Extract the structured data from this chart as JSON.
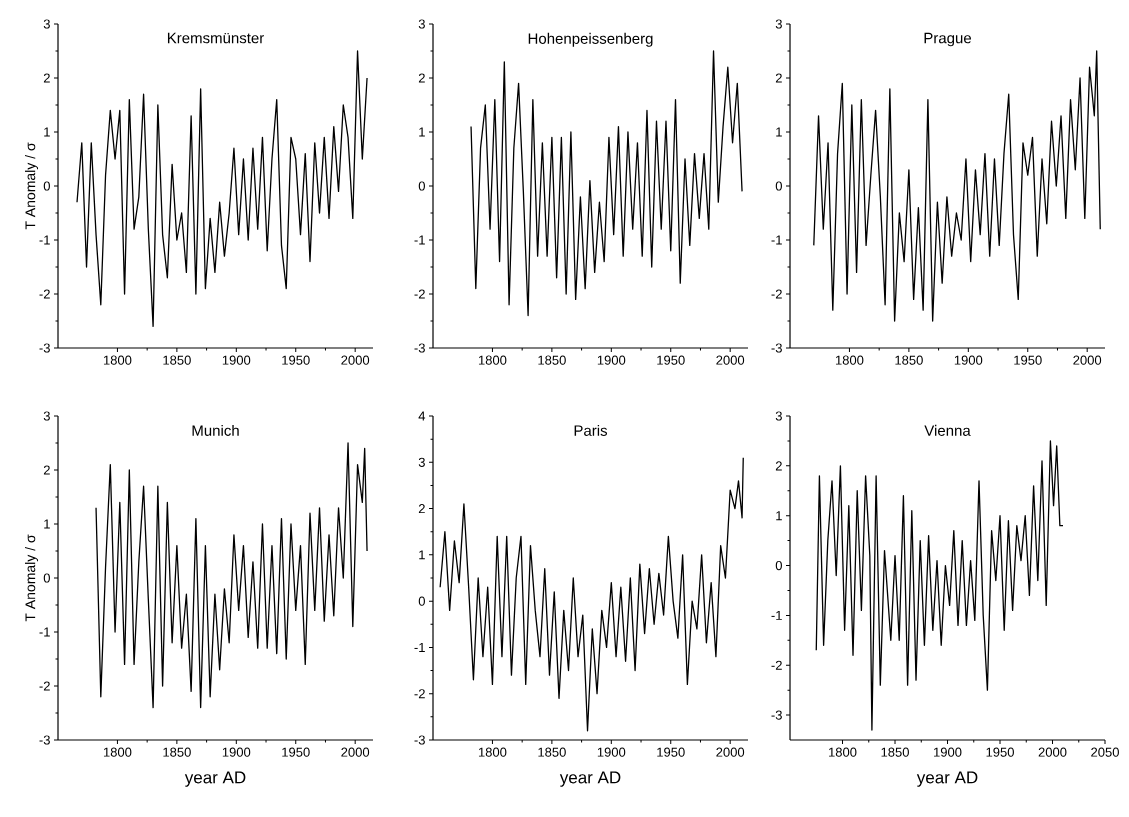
{
  "chart_data": [
    {
      "type": "line",
      "title": "Kremsmünster",
      "ylabel": "T Anomaly / σ",
      "xlim": [
        1750,
        2015
      ],
      "ylim": [
        -3,
        3
      ],
      "xticks": [
        1800,
        1850,
        1900,
        1950,
        2000
      ],
      "yticks": [
        -3,
        -2,
        -1,
        0,
        1,
        2,
        3
      ],
      "x": [
        1766,
        1770,
        1774,
        1778,
        1782,
        1786,
        1790,
        1794,
        1798,
        1802,
        1806,
        1810,
        1814,
        1818,
        1822,
        1826,
        1830,
        1834,
        1838,
        1842,
        1846,
        1850,
        1854,
        1858,
        1862,
        1866,
        1870,
        1874,
        1878,
        1882,
        1886,
        1890,
        1894,
        1898,
        1902,
        1906,
        1910,
        1914,
        1918,
        1922,
        1926,
        1930,
        1934,
        1938,
        1942,
        1946,
        1950,
        1954,
        1958,
        1962,
        1966,
        1970,
        1974,
        1978,
        1982,
        1986,
        1990,
        1994,
        1998,
        2002,
        2006,
        2010
      ],
      "series": [
        {
          "color": "#000000",
          "values": [
            -0.3,
            0.8,
            -1.5,
            0.8,
            -0.9,
            -2.2,
            0.2,
            1.4,
            0.5,
            1.4,
            -2.0,
            1.6,
            -0.8,
            -0.2,
            1.7,
            -0.8,
            -2.6,
            1.5,
            -0.9,
            -1.7,
            0.4,
            -1.0,
            -0.5,
            -1.6,
            1.3,
            -2.0,
            1.8,
            -1.9,
            -0.6,
            -1.6,
            -0.3,
            -1.3,
            -0.5,
            0.7,
            -0.9,
            0.5,
            -1.0,
            0.7,
            -0.8,
            0.9,
            -1.2,
            0.5,
            1.6,
            -1.1,
            -1.9,
            0.9,
            0.5,
            -0.9,
            0.6,
            -1.4,
            0.8,
            -0.5,
            0.9,
            -0.6,
            1.1,
            -0.1,
            1.5,
            0.9,
            -0.6,
            2.5,
            0.5,
            2.0
          ]
        }
      ]
    },
    {
      "type": "line",
      "title": "Hohenpeissenberg",
      "xlim": [
        1750,
        2015
      ],
      "ylim": [
        -3,
        3
      ],
      "xticks": [
        1800,
        1850,
        1900,
        1950,
        2000
      ],
      "yticks": [
        -3,
        -2,
        -1,
        0,
        1,
        2,
        3
      ],
      "x": [
        1782,
        1786,
        1790,
        1794,
        1798,
        1802,
        1806,
        1810,
        1814,
        1818,
        1822,
        1826,
        1830,
        1834,
        1838,
        1842,
        1846,
        1850,
        1854,
        1858,
        1862,
        1866,
        1870,
        1874,
        1878,
        1882,
        1886,
        1890,
        1894,
        1898,
        1902,
        1906,
        1910,
        1914,
        1918,
        1922,
        1926,
        1930,
        1934,
        1938,
        1942,
        1946,
        1950,
        1954,
        1958,
        1962,
        1966,
        1970,
        1974,
        1978,
        1982,
        1986,
        1990,
        1994,
        1998,
        2002,
        2006,
        2010
      ],
      "series": [
        {
          "color": "#000000",
          "values": [
            1.1,
            -1.9,
            0.7,
            1.5,
            -0.8,
            1.6,
            -1.4,
            2.3,
            -2.2,
            0.7,
            1.9,
            -0.1,
            -2.4,
            1.6,
            -1.3,
            0.8,
            -1.3,
            0.9,
            -1.7,
            0.9,
            -2.0,
            1.0,
            -2.1,
            -0.2,
            -1.9,
            0.1,
            -1.6,
            -0.3,
            -1.4,
            0.9,
            -0.9,
            1.1,
            -1.3,
            1.0,
            -0.8,
            0.8,
            -1.3,
            1.4,
            -1.5,
            1.2,
            -0.8,
            1.2,
            -1.2,
            1.6,
            -1.8,
            0.5,
            -1.1,
            0.6,
            -0.6,
            0.6,
            -0.8,
            2.5,
            -0.3,
            1.1,
            2.2,
            0.8,
            1.9,
            -0.1
          ]
        }
      ]
    },
    {
      "type": "line",
      "title": "Prague",
      "xlim": [
        1750,
        2015
      ],
      "ylim": [
        -3,
        3
      ],
      "xticks": [
        1800,
        1850,
        1900,
        1950,
        2000
      ],
      "yticks": [
        -3,
        -2,
        -1,
        0,
        1,
        2,
        3
      ],
      "x": [
        1770,
        1774,
        1778,
        1782,
        1786,
        1790,
        1794,
        1798,
        1802,
        1806,
        1810,
        1814,
        1818,
        1822,
        1826,
        1830,
        1834,
        1838,
        1842,
        1846,
        1850,
        1854,
        1858,
        1862,
        1866,
        1870,
        1874,
        1878,
        1882,
        1886,
        1890,
        1894,
        1898,
        1902,
        1906,
        1910,
        1914,
        1918,
        1922,
        1926,
        1930,
        1934,
        1938,
        1942,
        1946,
        1950,
        1954,
        1958,
        1962,
        1966,
        1970,
        1974,
        1978,
        1982,
        1986,
        1990,
        1994,
        1998,
        2002,
        2006,
        2008,
        2011
      ],
      "series": [
        {
          "color": "#000000",
          "values": [
            -1.1,
            1.3,
            -0.8,
            0.8,
            -2.3,
            0.6,
            1.9,
            -2.0,
            1.5,
            -1.6,
            1.6,
            -1.1,
            0.2,
            1.4,
            -0.2,
            -2.2,
            1.8,
            -2.5,
            -0.5,
            -1.4,
            0.3,
            -2.1,
            -0.4,
            -2.3,
            1.6,
            -2.5,
            -0.3,
            -1.8,
            -0.2,
            -1.3,
            -0.5,
            -1.0,
            0.5,
            -1.4,
            0.3,
            -0.9,
            0.6,
            -1.3,
            0.5,
            -1.1,
            0.6,
            1.7,
            -0.9,
            -2.1,
            0.8,
            0.2,
            0.9,
            -1.3,
            0.5,
            -0.7,
            1.2,
            0.0,
            1.3,
            -0.6,
            1.6,
            0.3,
            2.0,
            -0.6,
            2.2,
            1.3,
            2.5,
            -0.8
          ]
        }
      ]
    },
    {
      "type": "line",
      "title": "Munich",
      "xlabel": "year AD",
      "ylabel": "T Anomaly / σ",
      "xlim": [
        1750,
        2015
      ],
      "ylim": [
        -3,
        3
      ],
      "xticks": [
        1800,
        1850,
        1900,
        1950,
        2000
      ],
      "yticks": [
        -3,
        -2,
        -1,
        0,
        1,
        2,
        3
      ],
      "x": [
        1782,
        1786,
        1790,
        1794,
        1798,
        1802,
        1806,
        1810,
        1814,
        1818,
        1822,
        1826,
        1830,
        1834,
        1838,
        1842,
        1846,
        1850,
        1854,
        1858,
        1862,
        1866,
        1870,
        1874,
        1878,
        1882,
        1886,
        1890,
        1894,
        1898,
        1902,
        1906,
        1910,
        1914,
        1918,
        1922,
        1926,
        1930,
        1934,
        1938,
        1942,
        1946,
        1950,
        1954,
        1958,
        1962,
        1966,
        1970,
        1974,
        1978,
        1982,
        1986,
        1990,
        1994,
        1998,
        2002,
        2006,
        2008,
        2010
      ],
      "series": [
        {
          "color": "#000000",
          "values": [
            1.3,
            -2.2,
            0.2,
            2.1,
            -1.0,
            1.4,
            -1.6,
            2.0,
            -1.6,
            0.3,
            1.7,
            -0.4,
            -2.4,
            1.7,
            -2.0,
            1.4,
            -1.2,
            0.6,
            -1.3,
            -0.3,
            -2.1,
            1.1,
            -2.4,
            0.6,
            -2.2,
            -0.3,
            -1.7,
            -0.2,
            -1.2,
            0.8,
            -0.6,
            0.6,
            -1.1,
            0.3,
            -1.3,
            1.0,
            -1.3,
            0.6,
            -1.4,
            1.1,
            -1.5,
            1.0,
            -0.6,
            0.6,
            -1.6,
            1.2,
            -0.6,
            1.3,
            -0.8,
            0.8,
            -0.7,
            1.3,
            0.0,
            2.5,
            -0.9,
            2.1,
            1.4,
            2.4,
            0.5
          ]
        }
      ]
    },
    {
      "type": "line",
      "title": "Paris",
      "xlabel": "year AD",
      "xlim": [
        1750,
        2015
      ],
      "ylim": [
        -3,
        4
      ],
      "xticks": [
        1800,
        1850,
        1900,
        1950,
        2000
      ],
      "yticks": [
        -3,
        -2,
        -1,
        0,
        1,
        2,
        3,
        4
      ],
      "x": [
        1756,
        1760,
        1764,
        1768,
        1772,
        1776,
        1780,
        1784,
        1788,
        1792,
        1796,
        1800,
        1804,
        1808,
        1812,
        1816,
        1820,
        1824,
        1828,
        1832,
        1836,
        1840,
        1844,
        1848,
        1852,
        1856,
        1860,
        1864,
        1868,
        1872,
        1876,
        1880,
        1884,
        1888,
        1892,
        1896,
        1900,
        1904,
        1908,
        1912,
        1916,
        1920,
        1924,
        1928,
        1932,
        1936,
        1940,
        1944,
        1948,
        1952,
        1956,
        1960,
        1964,
        1968,
        1972,
        1976,
        1980,
        1984,
        1988,
        1992,
        1996,
        2000,
        2004,
        2007,
        2010,
        2011
      ],
      "series": [
        {
          "color": "#000000",
          "values": [
            0.3,
            1.5,
            -0.2,
            1.3,
            0.4,
            2.1,
            0.3,
            -1.7,
            0.5,
            -1.2,
            0.3,
            -1.8,
            1.4,
            -1.2,
            1.4,
            -1.6,
            0.5,
            1.4,
            -1.8,
            1.2,
            -0.2,
            -1.2,
            0.7,
            -1.6,
            0.2,
            -2.1,
            -0.2,
            -1.5,
            0.5,
            -1.2,
            -0.3,
            -2.8,
            -0.6,
            -2.0,
            -0.2,
            -1.0,
            0.4,
            -1.2,
            0.3,
            -1.3,
            0.5,
            -1.5,
            0.8,
            -0.7,
            0.7,
            -0.5,
            0.6,
            -0.3,
            1.4,
            0.0,
            -0.8,
            1.0,
            -1.8,
            0.0,
            -0.6,
            1.0,
            -0.9,
            0.4,
            -1.2,
            1.2,
            0.5,
            2.4,
            2.0,
            2.6,
            1.8,
            3.1
          ]
        }
      ]
    },
    {
      "type": "line",
      "title": "Vienna",
      "xlabel": "year AD",
      "xlim": [
        1750,
        2050
      ],
      "ylim": [
        -3.5,
        3
      ],
      "xticks": [
        1800,
        1850,
        1900,
        1950,
        2000,
        2050
      ],
      "yticks": [
        -3,
        -2,
        -1,
        0,
        1,
        2,
        3
      ],
      "x": [
        1775,
        1778,
        1782,
        1786,
        1790,
        1794,
        1798,
        1802,
        1806,
        1810,
        1814,
        1818,
        1822,
        1826,
        1828,
        1832,
        1836,
        1840,
        1846,
        1850,
        1854,
        1858,
        1862,
        1866,
        1870,
        1874,
        1878,
        1882,
        1886,
        1890,
        1894,
        1898,
        1902,
        1906,
        1910,
        1914,
        1918,
        1922,
        1926,
        1930,
        1934,
        1938,
        1942,
        1946,
        1950,
        1954,
        1958,
        1962,
        1966,
        1970,
        1974,
        1978,
        1982,
        1986,
        1990,
        1994,
        1998,
        2001,
        2004,
        2007,
        2010
      ],
      "series": [
        {
          "color": "#000000",
          "values": [
            -1.7,
            1.8,
            -1.6,
            0.5,
            1.7,
            -0.2,
            2.0,
            -1.3,
            1.2,
            -1.8,
            1.5,
            -0.9,
            1.8,
            0.2,
            -3.3,
            1.8,
            -2.4,
            0.3,
            -1.5,
            0.2,
            -1.5,
            1.4,
            -2.4,
            1.1,
            -2.3,
            0.5,
            -1.6,
            0.6,
            -1.3,
            0.1,
            -1.6,
            0.0,
            -0.8,
            0.7,
            -1.2,
            0.5,
            -1.2,
            0.1,
            -1.1,
            1.7,
            -1.0,
            -2.5,
            0.7,
            -0.3,
            1.0,
            -1.3,
            0.9,
            -0.9,
            0.8,
            0.1,
            1.0,
            -0.6,
            1.6,
            -0.3,
            2.1,
            -0.8,
            2.5,
            1.2,
            2.4,
            0.8,
            0.8
          ]
        }
      ]
    }
  ]
}
